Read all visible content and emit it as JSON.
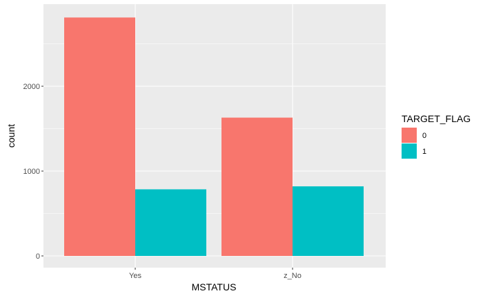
{
  "chart_data": {
    "type": "bar",
    "stacking": "dodge",
    "categories": [
      "Yes",
      "z_No"
    ],
    "series": [
      {
        "name": "0",
        "values": [
          2810,
          1630
        ],
        "color": "#F8766D"
      },
      {
        "name": "1",
        "values": [
          785,
          820
        ],
        "color": "#00BFC4"
      }
    ],
    "xlabel": "MSTATUS",
    "ylabel": "count",
    "ylim": [
      0,
      2950
    ],
    "yticks": [
      0,
      1000,
      2000
    ],
    "yticklabels": [
      "0",
      "1000",
      "2000"
    ],
    "legend": {
      "title": "TARGET_FLAG",
      "position": "right"
    },
    "grid": true,
    "panel_background": "#EBEBEB",
    "grid_color": "#FFFFFF"
  }
}
